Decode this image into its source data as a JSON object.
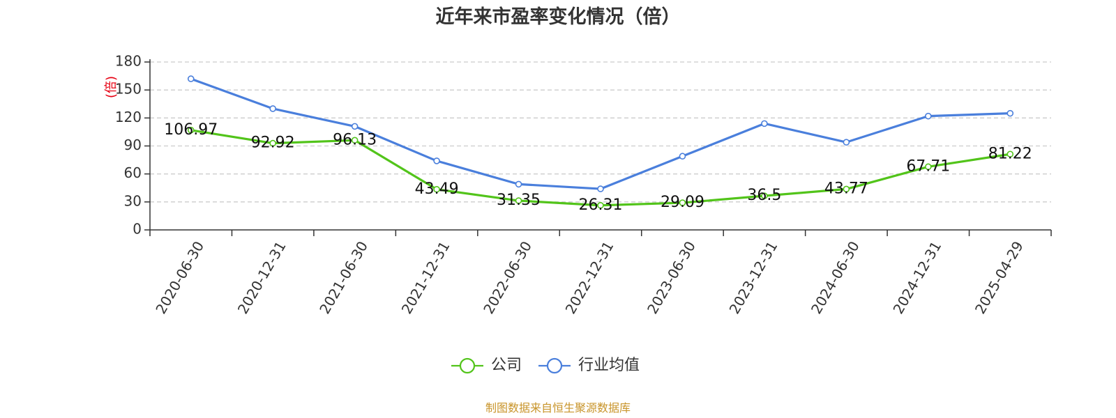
{
  "chart_data": {
    "type": "line",
    "title": "近年来市盈率变化情况（倍）",
    "ylabel": "(倍)",
    "xlabel": "",
    "categories": [
      "2020-06-30",
      "2020-12-31",
      "2021-06-30",
      "2021-12-31",
      "2022-06-30",
      "2022-12-31",
      "2023-06-30",
      "2023-12-31",
      "2024-06-30",
      "2024-12-31",
      "2025-04-29"
    ],
    "y_ticks": [
      "0",
      "30",
      "60",
      "90",
      "120",
      "150",
      "180"
    ],
    "ylim": [
      0,
      180
    ],
    "grid": true,
    "legend_position": "bottom",
    "series": [
      {
        "name": "公司",
        "color": "#52c41a",
        "values": [
          106.97,
          92.92,
          96.13,
          43.49,
          31.35,
          26.31,
          29.09,
          36.5,
          43.77,
          67.71,
          81.22
        ],
        "labels": [
          "106.97",
          "92.92",
          "96.13",
          "43.49",
          "31.35",
          "26.31",
          "29.09",
          "36.5",
          "43.77",
          "67.71",
          "81.22"
        ]
      },
      {
        "name": "行业均值",
        "color": "#4a7fdc",
        "values": [
          162,
          130,
          111,
          74,
          49,
          44,
          79,
          114,
          94,
          122,
          125
        ]
      }
    ]
  },
  "source": {
    "text": "制图数据来自恒生聚源数据库",
    "color": "#c8942a"
  }
}
